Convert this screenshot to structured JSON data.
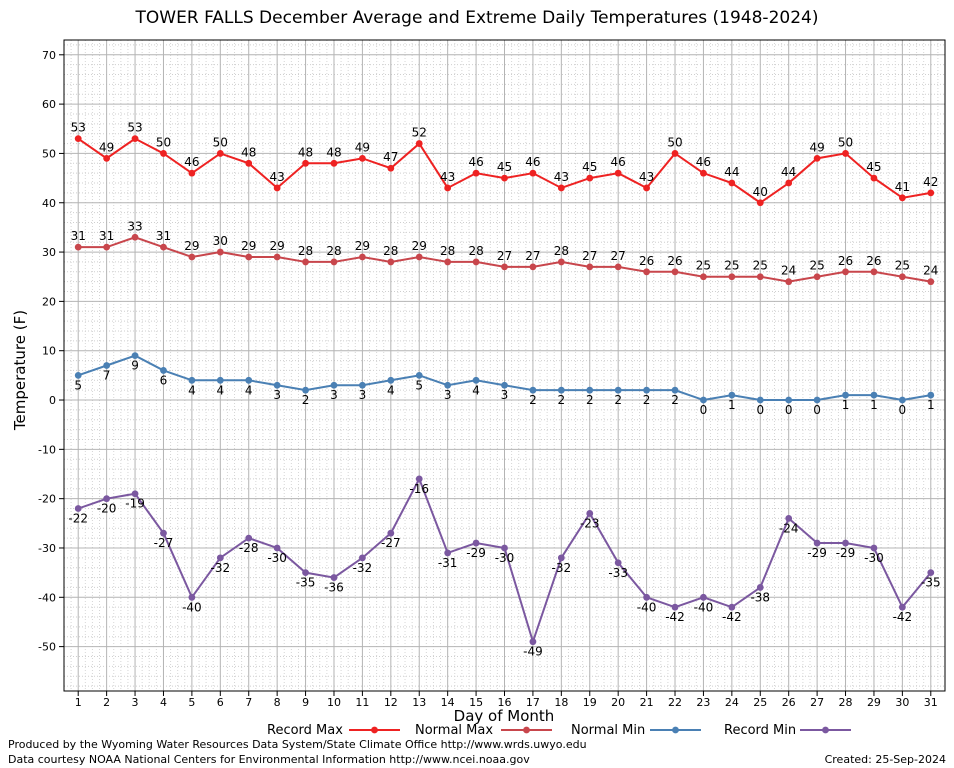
{
  "chart_data": {
    "type": "line",
    "title": "TOWER FALLS December Average and Extreme Daily Temperatures (1948-2024)",
    "xlabel": "Day of Month",
    "ylabel": "Temperature (F)",
    "x": [
      1,
      2,
      3,
      4,
      5,
      6,
      7,
      8,
      9,
      10,
      11,
      12,
      13,
      14,
      15,
      16,
      17,
      18,
      19,
      20,
      21,
      22,
      23,
      24,
      25,
      26,
      27,
      28,
      29,
      30,
      31
    ],
    "xlim": [
      0.5,
      31.5
    ],
    "ylim": [
      -59,
      73
    ],
    "y_ticks": [
      -50,
      -40,
      -30,
      -20,
      -10,
      0,
      10,
      20,
      30,
      40,
      50,
      60,
      70
    ],
    "grid": true,
    "legend_position": "bottom",
    "series": [
      {
        "name": "Record Max",
        "color": "#ee2222",
        "values": [
          53,
          49,
          53,
          50,
          46,
          50,
          48,
          43,
          48,
          48,
          49,
          47,
          52,
          43,
          46,
          45,
          46,
          43,
          45,
          46,
          43,
          50,
          46,
          44,
          40,
          44,
          49,
          50,
          45,
          41,
          42
        ]
      },
      {
        "name": "Normal Max",
        "color": "#c8464c",
        "values": [
          31,
          31,
          33,
          31,
          29,
          30,
          29,
          29,
          28,
          28,
          29,
          28,
          29,
          28,
          28,
          27,
          27,
          28,
          27,
          27,
          26,
          26,
          25,
          25,
          25,
          24,
          25,
          26,
          26,
          25,
          24
        ]
      },
      {
        "name": "Normal Min",
        "color": "#4a80b4",
        "values": [
          5,
          7,
          9,
          6,
          4,
          4,
          4,
          3,
          2,
          3,
          3,
          4,
          5,
          3,
          4,
          3,
          2,
          2,
          2,
          2,
          2,
          2,
          0,
          1,
          0,
          0,
          0,
          1,
          1,
          0,
          1
        ]
      },
      {
        "name": "Record Min",
        "color": "#7b58a0",
        "values": [
          -22,
          -20,
          -19,
          -27,
          -40,
          -32,
          -28,
          -30,
          -35,
          -36,
          -32,
          -27,
          -16,
          -31,
          -29,
          -30,
          -49,
          -32,
          -23,
          -33,
          -40,
          -42,
          -40,
          -42,
          -38,
          -24,
          -29,
          -29,
          -30,
          -42,
          -35
        ]
      }
    ]
  },
  "footer": {
    "produced_by": "Produced by the Wyoming Water Resources Data System/State Climate Office http://www.wrds.uwyo.edu",
    "courtesy": "Data courtesy NOAA National Centers for Environmental Information http://www.ncei.noaa.gov",
    "created": "Created:  25-Sep-2024"
  }
}
